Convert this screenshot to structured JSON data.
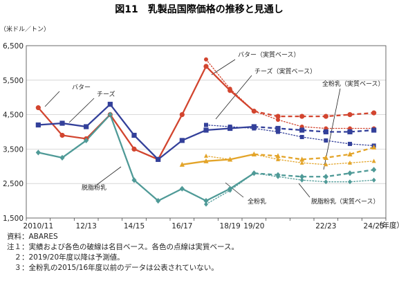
{
  "chart_data": {
    "type": "line",
    "title": "図11　乳製品国際価格の推移と見通し",
    "ylabel": "（米ドル／トン）",
    "xlabel": "（年度）",
    "ylim": [
      1500,
      6500
    ],
    "yticks": [
      1500,
      2500,
      3500,
      4500,
      5500,
      6500
    ],
    "ytick_labels": [
      "1,500",
      "2,500",
      "3,500",
      "4,500",
      "5,500",
      "6,500"
    ],
    "x": [
      "2010/11",
      "11/12",
      "12/13",
      "13/14",
      "14/15",
      "15/16",
      "16/17",
      "17/18",
      "18/19",
      "19/20",
      "20/21",
      "21/22",
      "22/23",
      "23/24",
      "24/25"
    ],
    "xtick_labels": [
      "2010/11",
      "12/13",
      "14/15",
      "16/17",
      "18/19",
      "19/20",
      "22/23",
      "24/25"
    ],
    "xtick_index": [
      0,
      2,
      4,
      6,
      8,
      9,
      12,
      14
    ],
    "grid": "horizontal",
    "series": [
      {
        "name": "バター",
        "color": "#d2452f",
        "marker": "circle",
        "values": [
          4700,
          3900,
          3800,
          4500,
          3500,
          3200,
          4500,
          5900,
          5200,
          4600,
          4450,
          4450,
          4450,
          4500,
          4550
        ]
      },
      {
        "name": "バター（実質ベース）",
        "color": "#d2452f",
        "marker": "circle",
        "dotted": true,
        "values": [
          null,
          null,
          null,
          null,
          null,
          null,
          null,
          6100,
          5250,
          4600,
          4350,
          4150,
          4100,
          4100,
          4100
        ]
      },
      {
        "name": "チーズ",
        "color": "#33409a",
        "marker": "square",
        "values": [
          4200,
          4250,
          4150,
          4800,
          3900,
          3200,
          3750,
          4050,
          4100,
          4150,
          4100,
          4050,
          4000,
          4000,
          4050
        ]
      },
      {
        "name": "チーズ（実質ベース）",
        "color": "#33409a",
        "marker": "square",
        "dotted": true,
        "values": [
          null,
          null,
          null,
          null,
          null,
          null,
          null,
          4200,
          4150,
          4100,
          4000,
          3850,
          3750,
          3650,
          3600
        ]
      },
      {
        "name": "脱脂粉乳",
        "color": "#4f9a97",
        "marker": "diamond",
        "values": [
          3400,
          3250,
          3750,
          4500,
          2600,
          2000,
          2350,
          2000,
          2350,
          2800,
          2750,
          2700,
          2700,
          2800,
          2900
        ]
      },
      {
        "name": "脱脂粉乳（実質ベース）",
        "color": "#4f9a97",
        "marker": "diamond",
        "dotted": true,
        "values": [
          null,
          null,
          null,
          null,
          null,
          null,
          null,
          1900,
          2300,
          2800,
          2700,
          2600,
          2550,
          2550,
          2600
        ]
      },
      {
        "name": "全粉乳",
        "color": "#e3a429",
        "marker": "triangle",
        "values": [
          null,
          null,
          null,
          null,
          null,
          null,
          3050,
          3150,
          3200,
          3350,
          3300,
          3200,
          3250,
          3350,
          3550
        ]
      },
      {
        "name": "全粉乳（実質ベース）",
        "color": "#e3a429",
        "marker": "triangle",
        "dotted": true,
        "values": [
          null,
          null,
          null,
          null,
          null,
          null,
          null,
          3300,
          3200,
          3350,
          3200,
          3100,
          3050,
          3100,
          3150
        ]
      }
    ],
    "annotations": [
      "バター",
      "チーズ",
      "脱脂粉乳",
      "全粉乳",
      "バター（実質ベース）",
      "チーズ（実質ベース）",
      "全粉乳（実質ベース）",
      "脱脂粉乳（実質ベース）"
    ]
  },
  "notes": {
    "source": "資料：ABARES",
    "note1": "注１：実績および各色の破線は名目ベース。各色の点線は実質ベース。",
    "note2": "　２：2019/20年度以降は予測値。",
    "note3": "　３：全粉乳の2015/16年度以前のデータは公表されていない。"
  }
}
